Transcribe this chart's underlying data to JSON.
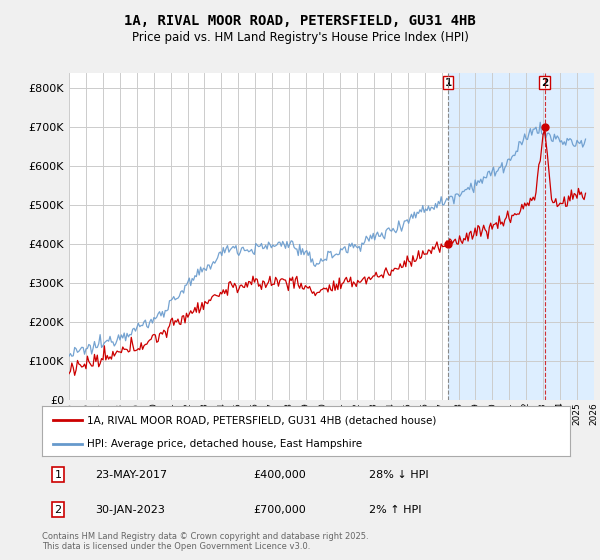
{
  "title": "1A, RIVAL MOOR ROAD, PETERSFIELD, GU31 4HB",
  "subtitle": "Price paid vs. HM Land Registry's House Price Index (HPI)",
  "legend_property": "1A, RIVAL MOOR ROAD, PETERSFIELD, GU31 4HB (detached house)",
  "legend_hpi": "HPI: Average price, detached house, East Hampshire",
  "annotation_1_date": "23-MAY-2017",
  "annotation_1_price": "£400,000",
  "annotation_1_hpi": "28% ↓ HPI",
  "annotation_2_date": "30-JAN-2023",
  "annotation_2_price": "£700,000",
  "annotation_2_hpi": "2% ↑ HPI",
  "footnote": "Contains HM Land Registry data © Crown copyright and database right 2025.\nThis data is licensed under the Open Government Licence v3.0.",
  "property_color": "#cc0000",
  "hpi_color": "#6699cc",
  "shade_color": "#ddeeff",
  "background_color": "#f0f0f0",
  "plot_background": "#ffffff",
  "grid_color": "#cccccc",
  "sale1_x": 2017.39,
  "sale1_y": 400000,
  "sale2_x": 2023.08,
  "sale2_y": 700000,
  "xmin": 1995,
  "xmax": 2026,
  "ymin": 0,
  "ymax": 840000,
  "yticks": [
    0,
    100000,
    200000,
    300000,
    400000,
    500000,
    600000,
    700000,
    800000
  ]
}
